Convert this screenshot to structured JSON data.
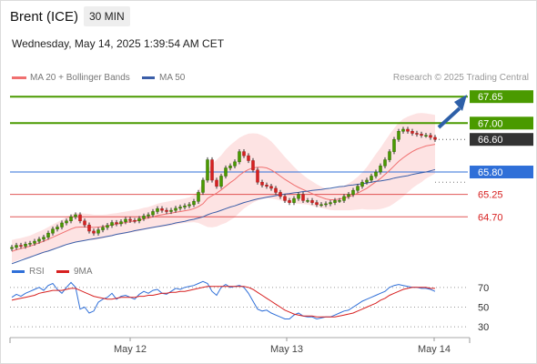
{
  "header": {
    "title": "Brent (ICE)",
    "interval": "30 MIN",
    "datetime": "Wednesday, May 14, 2025 1:39:54 AM CET"
  },
  "legend": {
    "bollinger": "MA 20 + Bollinger Bands",
    "ma50": "MA 50",
    "credit": "Research © 2025 Trading Central"
  },
  "rsi_legend": {
    "rsi": "RSI",
    "ma9": "9MA"
  },
  "colors": {
    "green": "#4a9a00",
    "blue": "#2f6fd8",
    "red": "#d72020",
    "dark": "#333333",
    "ma20": "#f07070",
    "ma50": "#3b5ea8",
    "band": "#fde0e0",
    "arrow": "#2d5fa8"
  },
  "chart_data": [
    {
      "type": "candlestick",
      "title": "Brent (ICE)",
      "x_ticks": [
        "May 12",
        "May 13",
        "May 14"
      ],
      "ylim": [
        63.5,
        67.9
      ],
      "levels": [
        {
          "label": "67.65",
          "value": 67.65,
          "kind": "resistance",
          "color": "#4a9a00"
        },
        {
          "label": "67.00",
          "value": 67.0,
          "kind": "resistance",
          "color": "#4a9a00"
        },
        {
          "label": "66.60",
          "value": 66.6,
          "kind": "last",
          "color": "#333333"
        },
        {
          "label": "65.80",
          "value": 65.8,
          "kind": "pivot",
          "color": "#2f6fd8"
        },
        {
          "label": "65.25",
          "value": 65.25,
          "kind": "support",
          "color": "#d72020"
        },
        {
          "label": "64.70",
          "value": 64.7,
          "kind": "support",
          "color": "#d72020"
        }
      ],
      "close": [
        63.95,
        64.0,
        63.98,
        64.03,
        64.05,
        64.1,
        64.15,
        64.2,
        64.3,
        64.4,
        64.45,
        64.55,
        64.6,
        64.7,
        64.75,
        64.6,
        64.5,
        64.35,
        64.3,
        64.38,
        64.44,
        64.49,
        64.56,
        64.53,
        64.58,
        64.64,
        64.61,
        64.6,
        64.66,
        64.72,
        64.75,
        64.83,
        64.9,
        64.86,
        64.83,
        64.86,
        64.91,
        64.94,
        64.97,
        65.0,
        65.08,
        65.3,
        65.6,
        66.1,
        65.6,
        65.45,
        65.7,
        65.9,
        65.95,
        66.05,
        66.3,
        66.2,
        66.08,
        65.85,
        65.55,
        65.48,
        65.45,
        65.4,
        65.3,
        65.2,
        65.1,
        65.05,
        65.15,
        65.25,
        65.1,
        65.1,
        65.05,
        65.0,
        65.0,
        65.02,
        65.05,
        65.1,
        65.1,
        65.2,
        65.25,
        65.35,
        65.45,
        65.55,
        65.6,
        65.7,
        65.8,
        65.95,
        66.1,
        66.3,
        66.6,
        66.8,
        66.85,
        66.8,
        66.75,
        66.73,
        66.7,
        66.7,
        66.65,
        66.6
      ],
      "ma20": [
        63.85,
        63.89,
        63.92,
        63.95,
        63.98,
        64.02,
        64.06,
        64.1,
        64.15,
        64.2,
        64.25,
        64.3,
        64.35,
        64.4,
        64.44,
        64.45,
        64.45,
        64.45,
        64.44,
        64.45,
        64.46,
        64.48,
        64.5,
        64.52,
        64.54,
        64.56,
        64.58,
        64.6,
        64.62,
        64.65,
        64.67,
        64.7,
        64.73,
        64.75,
        64.77,
        64.79,
        64.81,
        64.83,
        64.85,
        64.87,
        64.9,
        64.95,
        65.02,
        65.15,
        65.22,
        65.28,
        65.36,
        65.45,
        65.54,
        65.62,
        65.72,
        65.8,
        65.86,
        65.9,
        65.92,
        65.92,
        65.9,
        65.85,
        65.78,
        65.7,
        65.62,
        65.55,
        65.48,
        65.42,
        65.37,
        65.32,
        65.27,
        65.22,
        65.18,
        65.14,
        65.12,
        65.12,
        65.14,
        65.16,
        65.19,
        65.23,
        65.28,
        65.34,
        65.4,
        65.48,
        65.56,
        65.64,
        65.74,
        65.84,
        65.95,
        66.06,
        66.15,
        66.23,
        66.3,
        66.36,
        66.4,
        66.44,
        66.46,
        66.48
      ],
      "ma50": [
        63.55,
        63.59,
        63.63,
        63.67,
        63.71,
        63.75,
        63.79,
        63.83,
        63.86,
        63.9,
        63.94,
        63.98,
        64.02,
        64.05,
        64.08,
        64.1,
        64.12,
        64.14,
        64.16,
        64.18,
        64.2,
        64.22,
        64.24,
        64.27,
        64.29,
        64.31,
        64.33,
        64.36,
        64.38,
        64.4,
        64.42,
        64.44,
        64.46,
        64.48,
        64.5,
        64.52,
        64.55,
        64.57,
        64.59,
        64.62,
        64.64,
        64.67,
        64.7,
        64.75,
        64.79,
        64.82,
        64.86,
        64.9,
        64.94,
        64.97,
        65.01,
        65.05,
        65.08,
        65.11,
        65.14,
        65.16,
        65.18,
        65.2,
        65.22,
        65.24,
        65.26,
        65.27,
        65.29,
        65.3,
        65.32,
        65.33,
        65.35,
        65.36,
        65.37,
        65.39,
        65.4,
        65.42,
        65.44,
        65.45,
        65.47,
        65.48,
        65.5,
        65.51,
        65.53,
        65.55,
        65.57,
        65.58,
        65.6,
        65.62,
        65.65,
        65.67,
        65.69,
        65.71,
        65.74,
        65.76,
        65.78,
        65.8,
        65.83,
        65.86
      ],
      "bb_width": [
        0.28,
        0.27,
        0.26,
        0.26,
        0.26,
        0.27,
        0.28,
        0.29,
        0.3,
        0.31,
        0.32,
        0.33,
        0.34,
        0.35,
        0.35,
        0.34,
        0.33,
        0.32,
        0.31,
        0.3,
        0.29,
        0.28,
        0.28,
        0.27,
        0.27,
        0.27,
        0.27,
        0.27,
        0.27,
        0.27,
        0.27,
        0.28,
        0.29,
        0.3,
        0.3,
        0.3,
        0.3,
        0.3,
        0.3,
        0.31,
        0.33,
        0.4,
        0.52,
        0.7,
        0.78,
        0.82,
        0.85,
        0.9,
        0.92,
        0.93,
        0.92,
        0.9,
        0.88,
        0.85,
        0.82,
        0.78,
        0.74,
        0.7,
        0.65,
        0.6,
        0.55,
        0.5,
        0.45,
        0.4,
        0.36,
        0.32,
        0.3,
        0.28,
        0.26,
        0.25,
        0.25,
        0.26,
        0.28,
        0.3,
        0.33,
        0.36,
        0.4,
        0.45,
        0.52,
        0.6,
        0.68,
        0.75,
        0.82,
        0.88,
        0.92,
        0.95,
        0.95,
        0.93,
        0.9,
        0.88,
        0.85,
        0.8,
        0.76,
        0.72
      ]
    },
    {
      "type": "line",
      "title": "RSI",
      "y_ticks": [
        70,
        50,
        30
      ],
      "ylim": [
        20,
        80
      ],
      "series": [
        {
          "name": "RSI",
          "color": "#2f6fd8",
          "values": [
            60,
            63,
            61,
            64,
            66,
            68,
            70,
            67,
            72,
            74,
            68,
            64,
            70,
            75,
            70,
            48,
            50,
            44,
            46,
            55,
            58,
            60,
            64,
            58,
            61,
            62,
            60,
            58,
            63,
            66,
            64,
            67,
            68,
            64,
            63,
            66,
            69,
            68,
            70,
            71,
            72,
            74,
            76,
            74,
            66,
            62,
            70,
            73,
            70,
            71,
            72,
            70,
            64,
            56,
            48,
            46,
            47,
            44,
            42,
            40,
            38,
            38,
            42,
            44,
            41,
            40,
            40,
            38,
            39,
            40,
            40,
            42,
            44,
            46,
            47,
            50,
            53,
            56,
            58,
            60,
            62,
            64,
            66,
            70,
            72,
            73,
            72,
            71,
            70,
            70,
            69,
            69,
            68,
            66
          ]
        },
        {
          "name": "9MA",
          "color": "#d72020",
          "values": [
            57,
            58,
            59,
            60,
            61,
            62,
            64,
            65,
            66,
            67,
            67,
            67,
            68,
            69,
            69,
            67,
            65,
            63,
            61,
            60,
            59,
            58,
            58,
            59,
            60,
            60,
            60,
            60,
            61,
            61,
            62,
            62,
            63,
            64,
            64,
            65,
            65,
            66,
            66,
            67,
            68,
            69,
            70,
            71,
            71,
            71,
            71,
            71,
            71,
            71,
            71,
            71,
            70,
            68,
            65,
            62,
            59,
            56,
            53,
            50,
            47,
            45,
            43,
            42,
            41,
            41,
            41,
            40,
            40,
            40,
            40,
            40,
            41,
            42,
            43,
            44,
            46,
            48,
            50,
            52,
            54,
            57,
            59,
            62,
            64,
            66,
            68,
            69,
            70,
            70,
            70,
            70,
            69,
            69
          ]
        }
      ]
    }
  ]
}
